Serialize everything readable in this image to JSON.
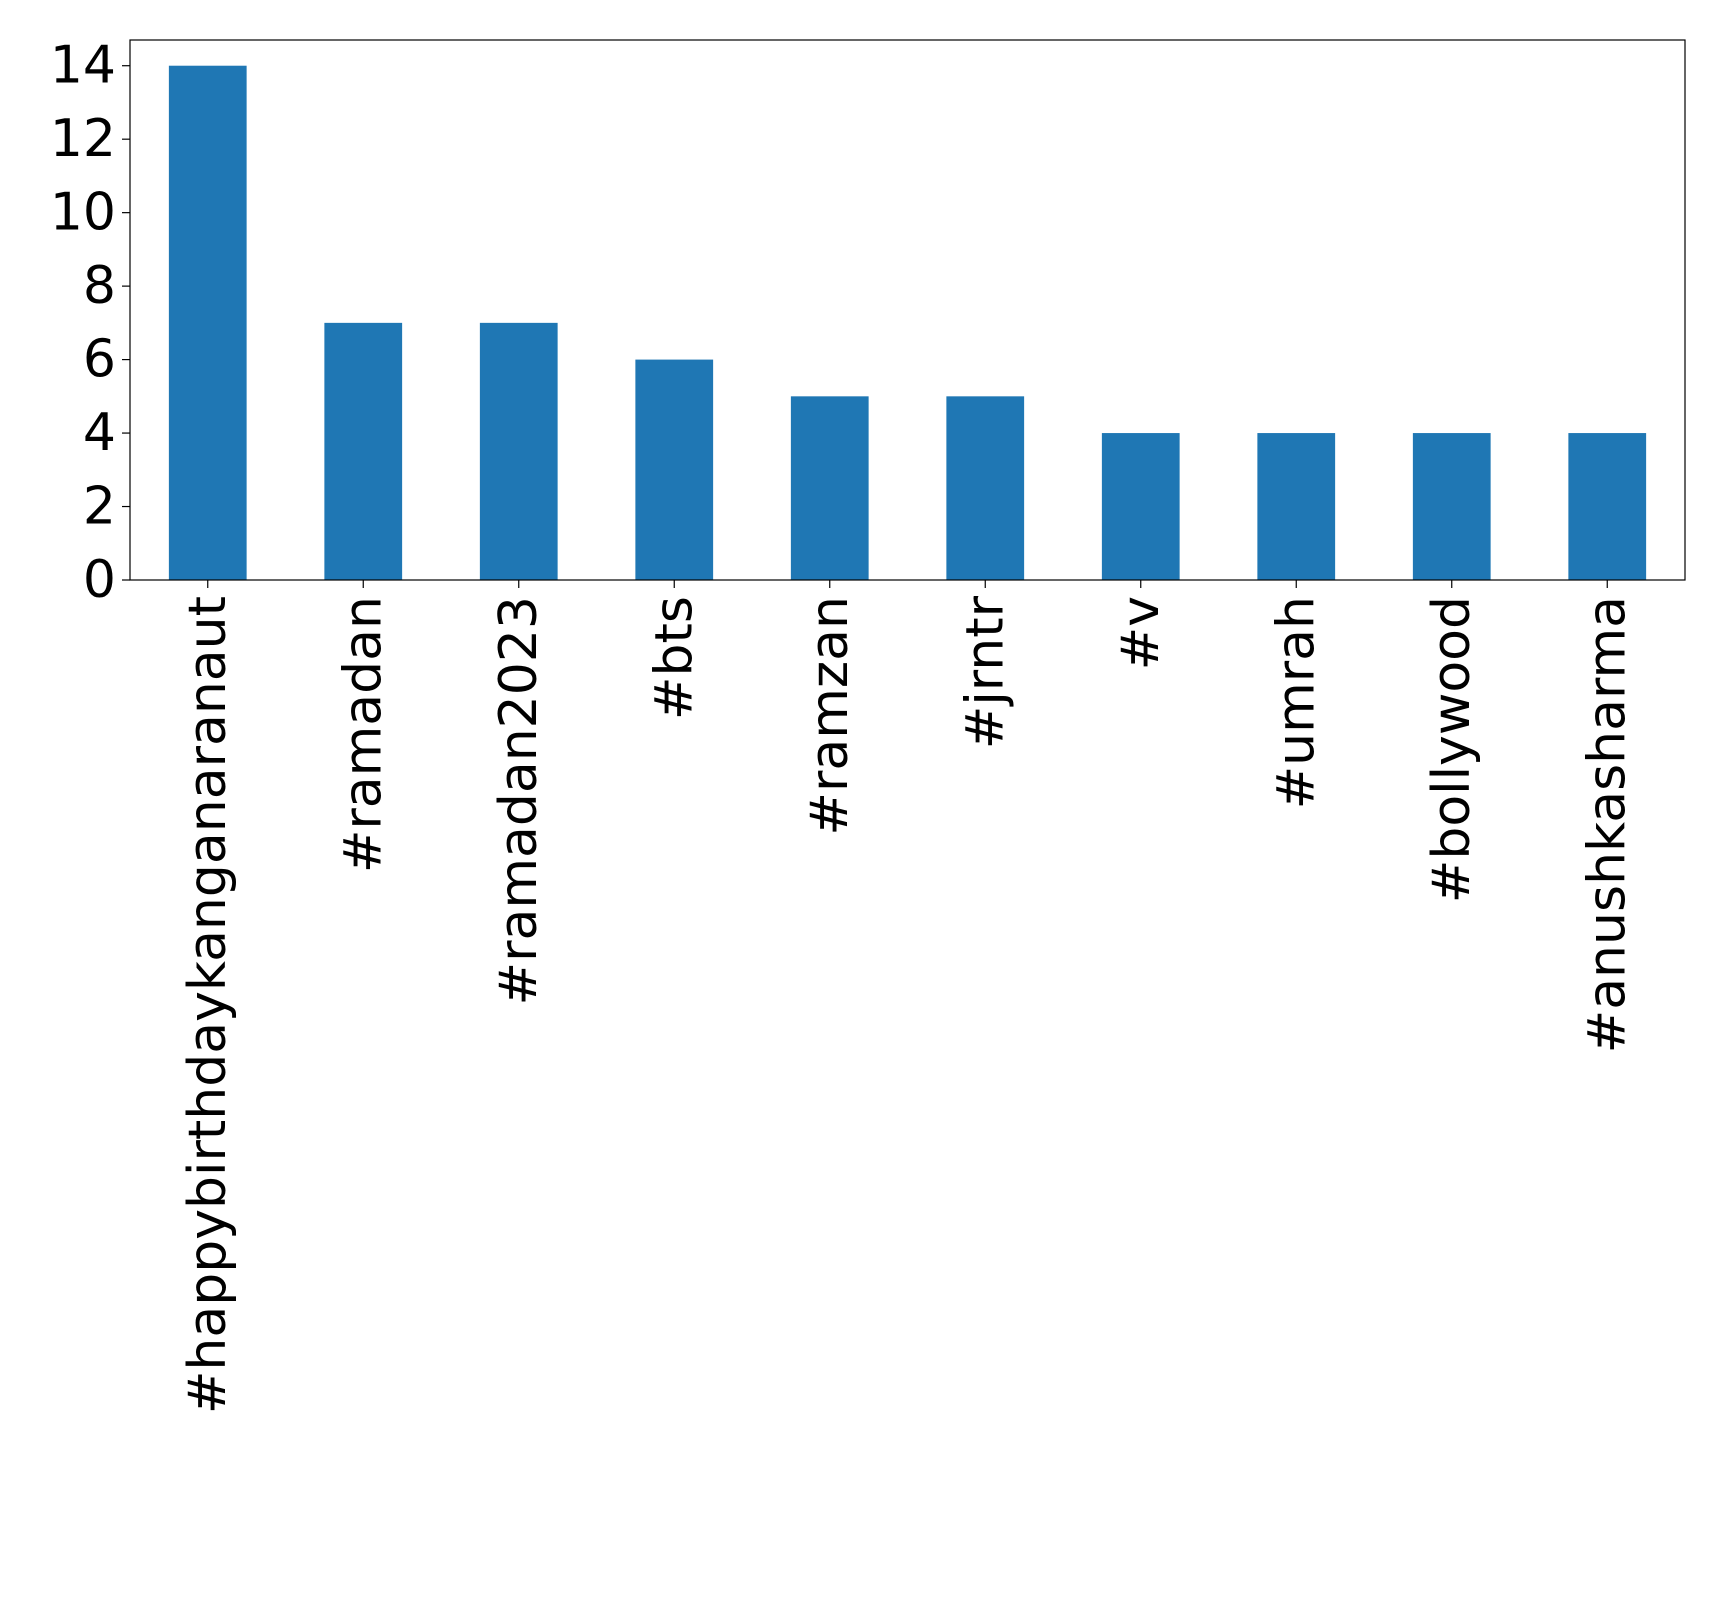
{
  "chart_data": {
    "type": "bar",
    "title": "",
    "xlabel": "",
    "ylabel": "",
    "categories": [
      "#happybirthdaykanganaranaut",
      "#ramadan",
      "#ramadan2023",
      "#bts",
      "#ramzan",
      "#jrntr",
      "#v",
      "#umrah",
      "#bollywood",
      "#anushkasharma"
    ],
    "values": [
      14,
      7,
      7,
      6,
      5,
      5,
      4,
      4,
      4,
      4
    ],
    "ylim": [
      0,
      14.7
    ],
    "yticks": [
      0,
      2,
      4,
      6,
      8,
      10,
      12,
      14
    ],
    "ytick_labels": [
      "0",
      "2",
      "4",
      "6",
      "8",
      "10",
      "12",
      "14"
    ],
    "bar_color": "#1f77b4",
    "grid": false,
    "legend": "none"
  }
}
